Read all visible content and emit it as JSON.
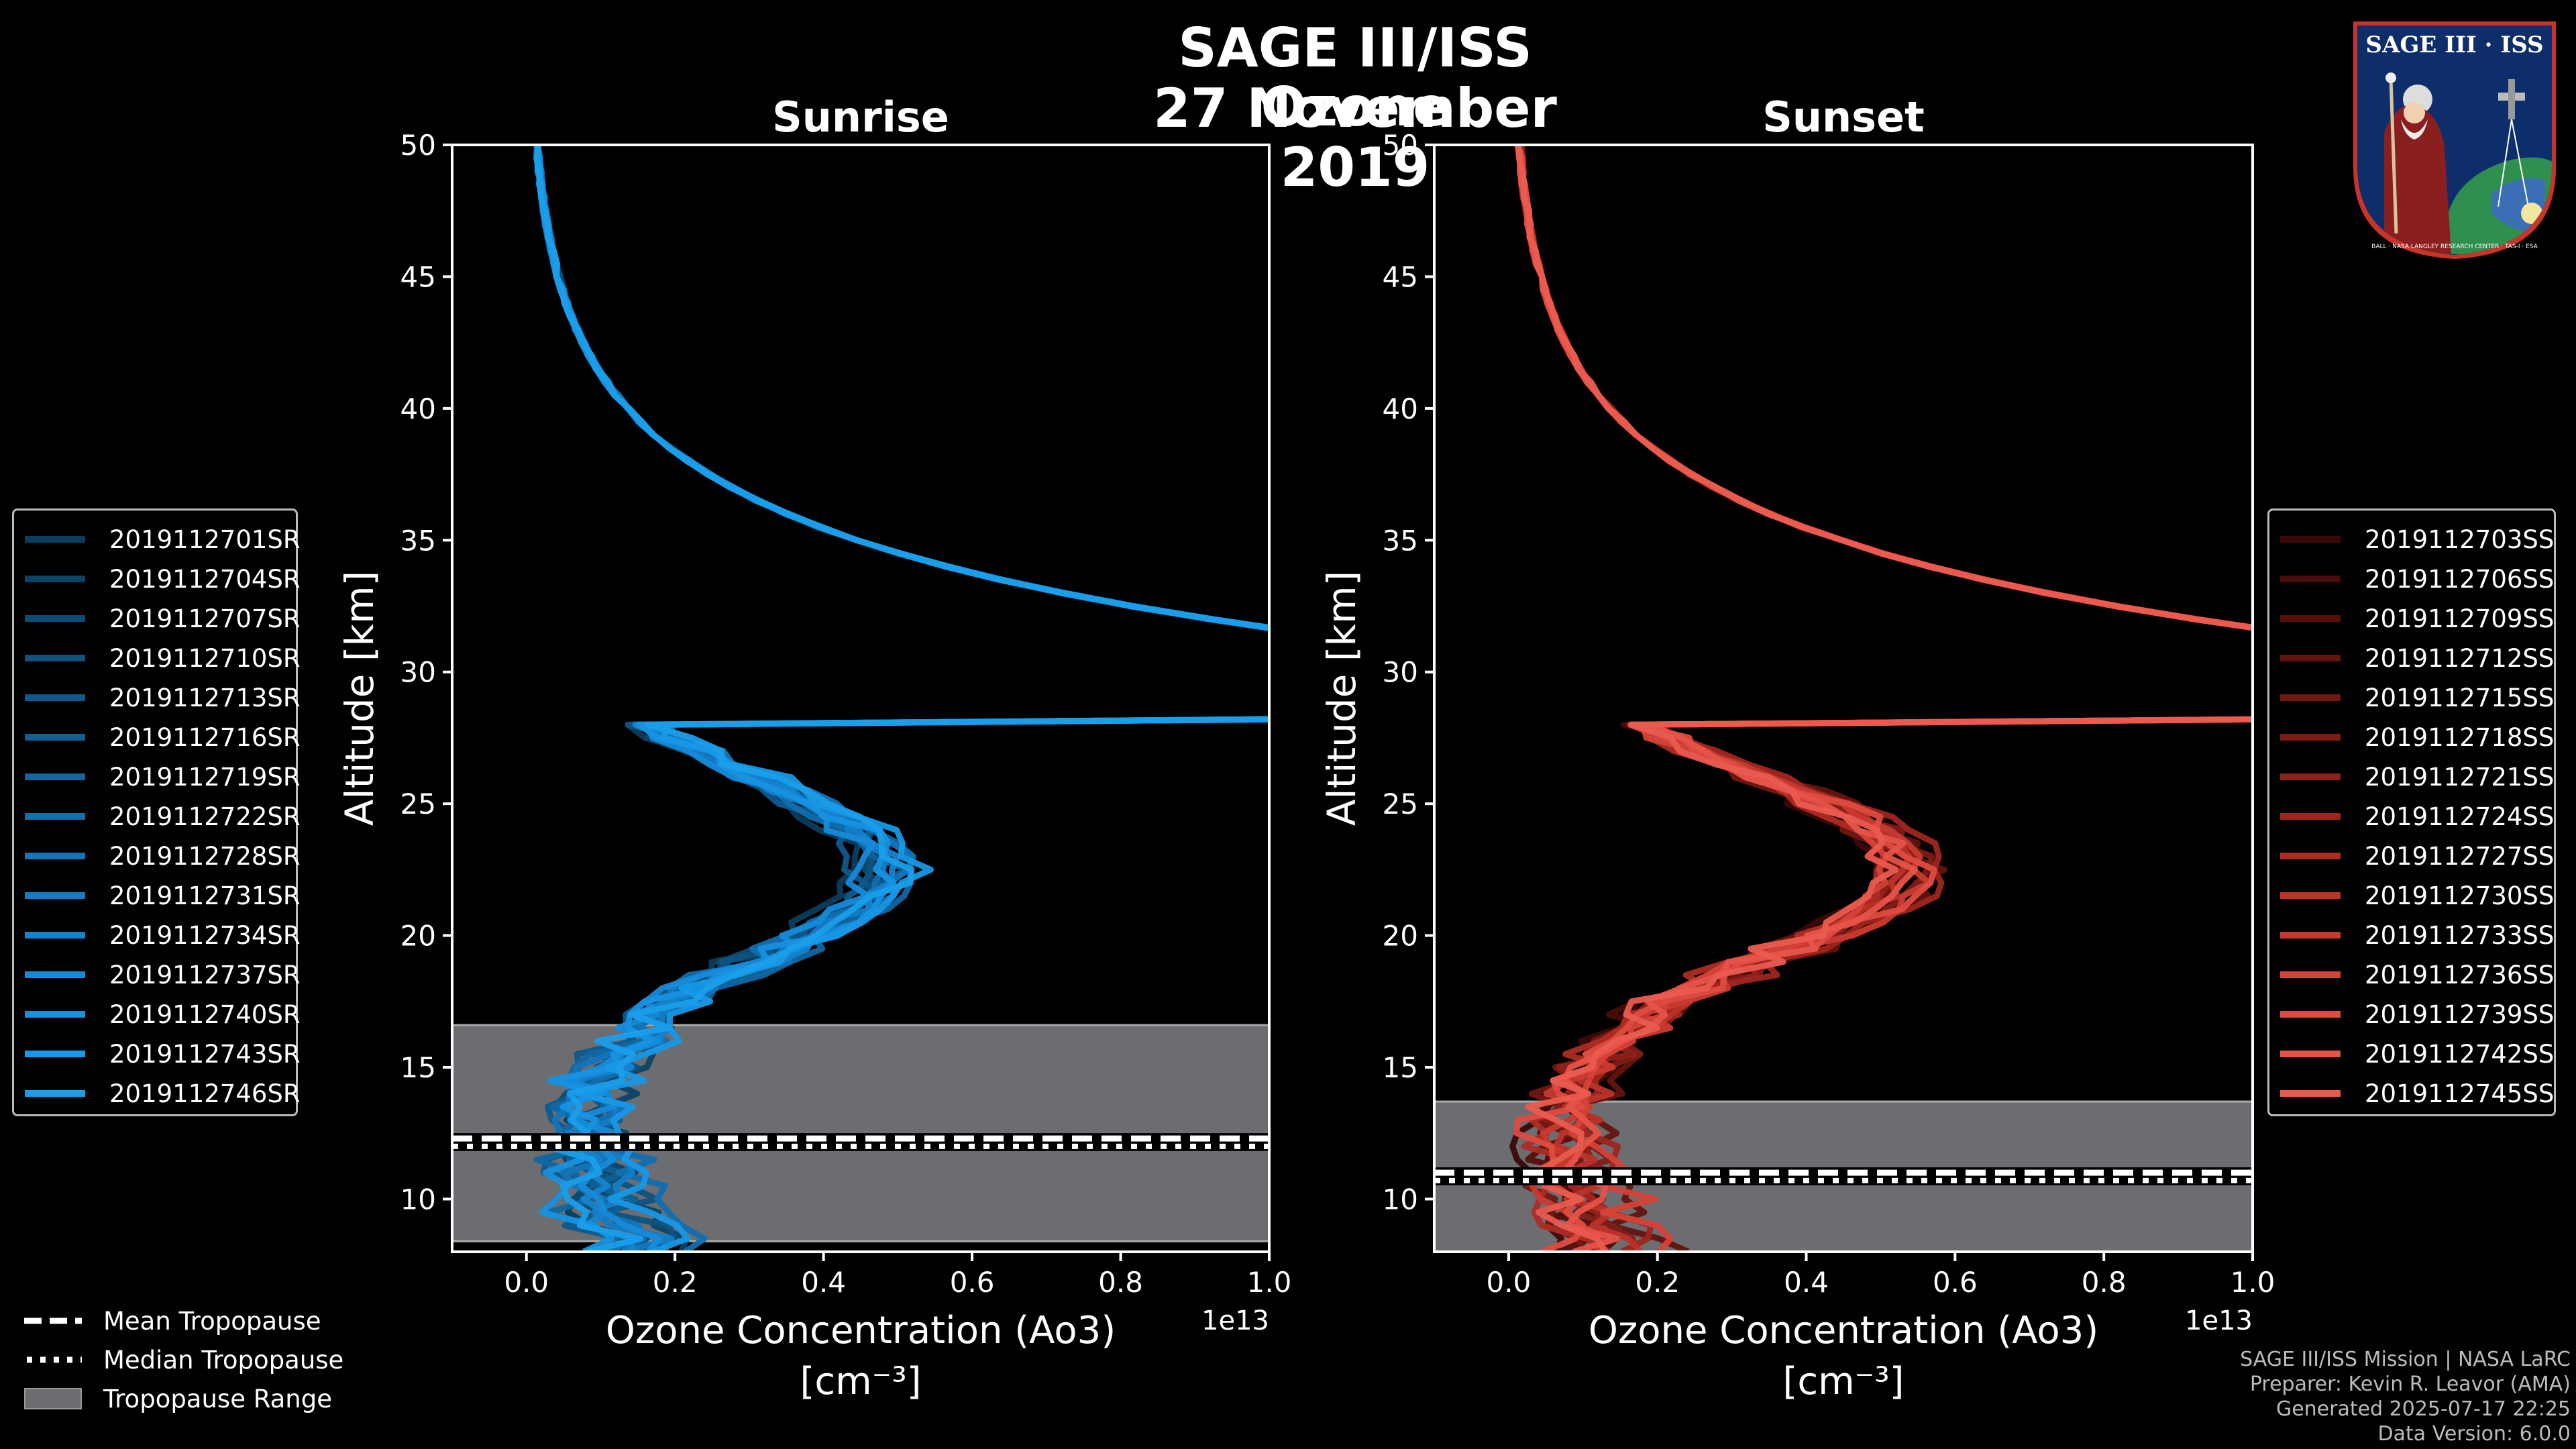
{
  "figure": {
    "title_line1": "SAGE III/ISS Ozone",
    "title_line2": "27 November 2019"
  },
  "chart_data": [
    {
      "type": "line",
      "title": "Sunrise",
      "xlabel": "Ozone Concentration (Ao3)",
      "xlabel_units": "[cm⁻³]",
      "ylabel": "Altitude [km]",
      "x_scale_label": "1e13",
      "xlim": [
        -0.1,
        1.0
      ],
      "ylim": [
        8,
        50
      ],
      "xticks": [
        "0.0",
        "0.2",
        "0.4",
        "0.6",
        "0.8",
        "1.0"
      ],
      "yticks": [
        "10",
        "15",
        "20",
        "25",
        "30",
        "35",
        "40",
        "45",
        "50"
      ],
      "tropopause": {
        "mean": 12.3,
        "median": 12.0,
        "range": [
          8.4,
          16.6
        ]
      },
      "series": [
        {
          "name": "2019112701SR",
          "color": "#0b3d5c",
          "peak": 0.44,
          "surface": 0.12
        },
        {
          "name": "2019112704SR",
          "color": "#0c4468",
          "peak": 0.46,
          "surface": 0.2
        },
        {
          "name": "2019112707SR",
          "color": "#0d4b73",
          "peak": 0.47,
          "surface": 0.14
        },
        {
          "name": "2019112710SR",
          "color": "#0e527f",
          "peak": 0.48,
          "surface": 0.18
        },
        {
          "name": "2019112713SR",
          "color": "#0f598b",
          "peak": 0.45,
          "surface": 0.1
        },
        {
          "name": "2019112716SR",
          "color": "#106096",
          "peak": 0.49,
          "surface": 0.16
        },
        {
          "name": "2019112719SR",
          "color": "#1167a2",
          "peak": 0.5,
          "surface": 0.09
        },
        {
          "name": "2019112722SR",
          "color": "#126eae",
          "peak": 0.47,
          "surface": 0.22
        },
        {
          "name": "2019112728SR",
          "color": "#1375b9",
          "peak": 0.51,
          "surface": 0.13
        },
        {
          "name": "2019112731SR",
          "color": "#147cc4",
          "peak": 0.48,
          "surface": 0.17
        },
        {
          "name": "2019112734SR",
          "color": "#1583ce",
          "peak": 0.5,
          "surface": 0.11
        },
        {
          "name": "2019112737SR",
          "color": "#168ad8",
          "peak": 0.46,
          "surface": 0.15
        },
        {
          "name": "2019112740SR",
          "color": "#1791e0",
          "peak": 0.49,
          "surface": 0.08
        },
        {
          "name": "2019112743SR",
          "color": "#1898e6",
          "peak": 0.52,
          "surface": 0.19
        },
        {
          "name": "2019112746SR",
          "color": "#1a9eea",
          "peak": 0.5,
          "surface": 0.12
        }
      ]
    },
    {
      "type": "line",
      "title": "Sunset",
      "xlabel": "Ozone Concentration (Ao3)",
      "xlabel_units": "[cm⁻³]",
      "ylabel": "Altitude [km]",
      "x_scale_label": "1e13",
      "xlim": [
        -0.1,
        1.0
      ],
      "ylim": [
        8,
        50
      ],
      "xticks": [
        "0.0",
        "0.2",
        "0.4",
        "0.6",
        "0.8",
        "1.0"
      ],
      "yticks": [
        "10",
        "15",
        "20",
        "25",
        "30",
        "35",
        "40",
        "45",
        "50"
      ],
      "tropopause": {
        "mean": 11.0,
        "median": 10.7,
        "range": [
          8.0,
          13.7
        ]
      },
      "series": [
        {
          "name": "2019112703SS",
          "color": "#3a0a08",
          "peak": 0.5,
          "surface": 0.06
        },
        {
          "name": "2019112706SS",
          "color": "#470d0a",
          "peak": 0.54,
          "surface": 0.14
        },
        {
          "name": "2019112709SS",
          "color": "#55100c",
          "peak": 0.52,
          "surface": 0.1
        },
        {
          "name": "2019112712SS",
          "color": "#63140f",
          "peak": 0.56,
          "surface": 0.2
        },
        {
          "name": "2019112715SS",
          "color": "#711812",
          "peak": 0.51,
          "surface": 0.08
        },
        {
          "name": "2019112718SS",
          "color": "#801c16",
          "peak": 0.55,
          "surface": 0.16
        },
        {
          "name": "2019112721SS",
          "color": "#8f211a",
          "peak": 0.53,
          "surface": 0.12
        },
        {
          "name": "2019112724SS",
          "color": "#9e261f",
          "peak": 0.57,
          "surface": 0.18
        },
        {
          "name": "2019112727SS",
          "color": "#ad2c24",
          "peak": 0.5,
          "surface": 0.09
        },
        {
          "name": "2019112730SS",
          "color": "#bb332a",
          "peak": 0.54,
          "surface": 0.15
        },
        {
          "name": "2019112733SS",
          "color": "#c83a31",
          "peak": 0.56,
          "surface": 0.11
        },
        {
          "name": "2019112736SS",
          "color": "#d44238",
          "peak": 0.52,
          "surface": 0.21
        },
        {
          "name": "2019112739SS",
          "color": "#de4b40",
          "peak": 0.55,
          "surface": 0.07
        },
        {
          "name": "2019112742SS",
          "color": "#e65348",
          "peak": 0.53,
          "surface": 0.13
        },
        {
          "name": "2019112745SS",
          "color": "#ea5b4f",
          "peak": 0.51,
          "surface": 0.1
        }
      ]
    }
  ],
  "tropopause_legend": [
    {
      "label": "Mean Tropopause",
      "style": "dashed"
    },
    {
      "label": "Median Tropopause",
      "style": "dotted"
    },
    {
      "label": "Tropopause Range",
      "style": "patch"
    }
  ],
  "footer": {
    "line1": "SAGE III/ISS Mission | NASA LaRC",
    "line2": "Preparer: Kevin R. Leavor (AMA)",
    "line3": "Generated 2025-07-17 22:25",
    "line4": "Data Version: 6.0.0"
  },
  "logo": {
    "text": "SAGE III · ISS",
    "ring_text": "BALL · NASA LANGLEY RESEARCH CENTER · TAS-I · ESA"
  }
}
